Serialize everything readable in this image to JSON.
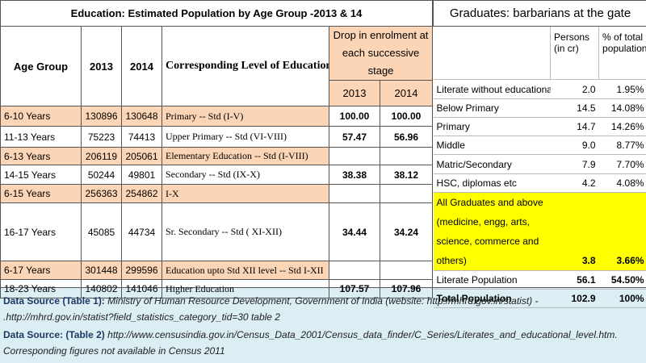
{
  "left_table": {
    "title": "Education: Estimated Population by Age Group -2013 & 14",
    "headers": {
      "age": "Age Group",
      "y2013": "2013",
      "y2014": "2014",
      "level": "Corresponding Level of Education",
      "drop": "Drop in enrolment at each successive stage",
      "drop2013": "2013",
      "drop2014": "2014"
    },
    "rows": [
      [
        "6-10 Years",
        "130896",
        "130648",
        "Primary -- Std  (I-V)",
        "100.00",
        "100.00"
      ],
      [
        "11-13 Years",
        "75223",
        "74413",
        "Upper Primary  -- Std  (VI-VIII)",
        "57.47",
        "56.96"
      ],
      [
        "6-13 Years",
        "206119",
        "205061",
        "Elementary  Education -- Std  (I-VIII)",
        null,
        null
      ],
      [
        "14-15 Years",
        "50244",
        "49801",
        "Secondary  -- Std  (IX-X)",
        "38.38",
        "38.12"
      ],
      [
        "6-15 Years",
        "256363",
        "254862",
        "I-X",
        null,
        null
      ],
      [
        "16-17 Years",
        "45085",
        "44734",
        "Sr. Secondary  -- Std ( XI-XII)",
        "34.44",
        "34.24"
      ],
      [
        "6-17 Years",
        "301448",
        "299596",
        "Education upto Std XII level -- Std  I-XII",
        null,
        null
      ],
      [
        "18-23 Years",
        "140802",
        "141046",
        "Higher Education",
        "107.57",
        "107.96"
      ]
    ]
  },
  "right_table": {
    "title": "Graduates: barbarians at the gate",
    "headers": {
      "persons": "Persons (in cr)",
      "percent": "% of total population"
    },
    "rows": [
      [
        "Literate without educational lev",
        "2.0",
        "1.95%"
      ],
      [
        "Below Primary",
        "14.5",
        "14.08%"
      ],
      [
        "Primary",
        "14.7",
        "14.26%"
      ],
      [
        "Middle",
        "9.0",
        "8.77%"
      ],
      [
        "Matric/Secondary",
        "7.9",
        "7.70%"
      ],
      [
        "HSC, diplomas etc",
        "4.2",
        "4.08%"
      ],
      [
        "All Graduates and above (medicine, engg, arts, science, commerce and others)",
        "3.8",
        "3.66%"
      ],
      [
        "Literate Population",
        "56.1",
        "54.50%"
      ],
      [
        "Total Population",
        "102.9",
        "100%"
      ]
    ]
  },
  "sources": [
    {
      "label": "Data Source (Table 1):",
      "text": "Ministry of Human Resource Development, Government of India (website: http://mhrd.gov.in/statist)  - .http://mhrd.gov.in/statist?field_statistics_category_tid=30   table 2"
    },
    {
      "label": "Data Source: (Table 2)",
      "text": "http://www.censusindia.gov.in/Census_Data_2001/Census_data_finder/C_Series/Literates_and_educational_level.htm. Corresponding figures not available in Census 2011"
    }
  ]
}
